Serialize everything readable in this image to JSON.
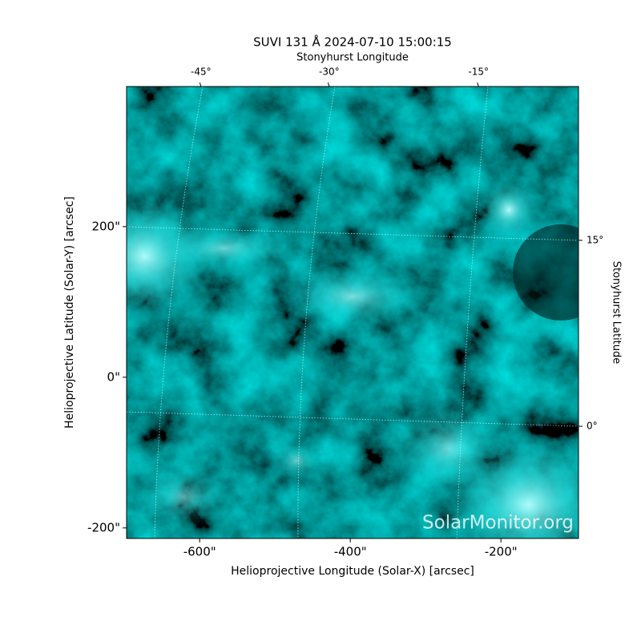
{
  "chart_data": {
    "type": "image",
    "title": "SUVI 131 Å 2024-07-10 15:00:15",
    "xlabel": "Helioprojective Longitude (Solar-X) [arcsec]",
    "ylabel": "Helioprojective Latitude (Solar-Y) [arcsec]",
    "top_label": "Stonyhurst Longitude",
    "right_label": "Stonyhurst Latitude",
    "watermark": "SolarMonitor.org",
    "xlim": [
      -697,
      -97
    ],
    "ylim": [
      -214,
      386
    ],
    "xticks": [
      {
        "value": -600,
        "label": "-600\""
      },
      {
        "value": -400,
        "label": "-400\""
      },
      {
        "value": -200,
        "label": "-200\""
      }
    ],
    "yticks": [
      {
        "value": -200,
        "label": "-200\""
      },
      {
        "value": 0,
        "label": "0\""
      },
      {
        "value": 200,
        "label": "200\""
      }
    ],
    "top_ticks": [
      {
        "value": -45,
        "label": "-45°"
      },
      {
        "value": -30,
        "label": "-30°"
      },
      {
        "value": -15,
        "label": "-15°"
      }
    ],
    "right_ticks": [
      {
        "value": 15,
        "label": "15°"
      },
      {
        "value": 0,
        "label": "0°"
      }
    ]
  }
}
